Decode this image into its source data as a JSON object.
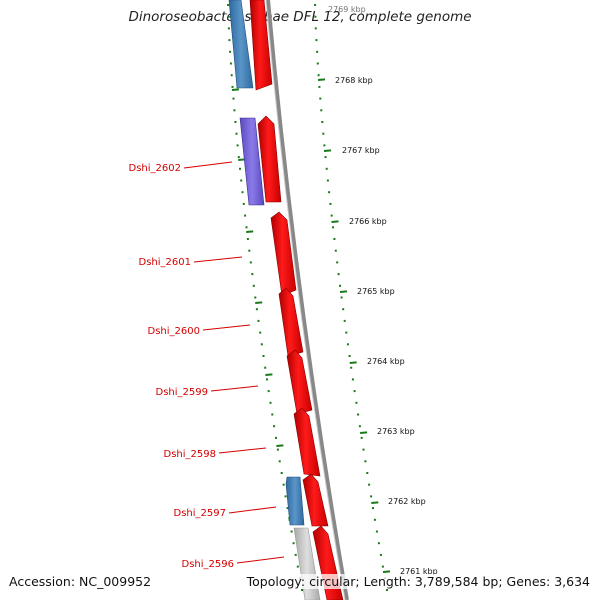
{
  "title": "Dinoroseobacter shibae DFL 12, complete genome",
  "footer": {
    "accession": "Accession: NC_009952",
    "summary": "Topology: circular; Length: 3,789,584 bp; Genes: 3,634"
  },
  "colors": {
    "forward_cds": "#ff0000",
    "reverse_cds": "#3a78b0",
    "other_feature": "#6a5acd",
    "gray_feature": "#c8c8c8",
    "backbone": "#888888",
    "tick": "#1a7a1a",
    "label": "#d40000"
  },
  "scale_labels": [
    "2769 kbp",
    "2768 kbp",
    "2767 kbp",
    "2766 kbp",
    "2765 kbp",
    "2764 kbp",
    "2763 kbp",
    "2762 kbp",
    "2761 kbp"
  ],
  "gene_labels": [
    "Dshi_2602",
    "Dshi_2601",
    "Dshi_2600",
    "Dshi_2599",
    "Dshi_2598",
    "Dshi_2597",
    "Dshi_2596"
  ]
}
